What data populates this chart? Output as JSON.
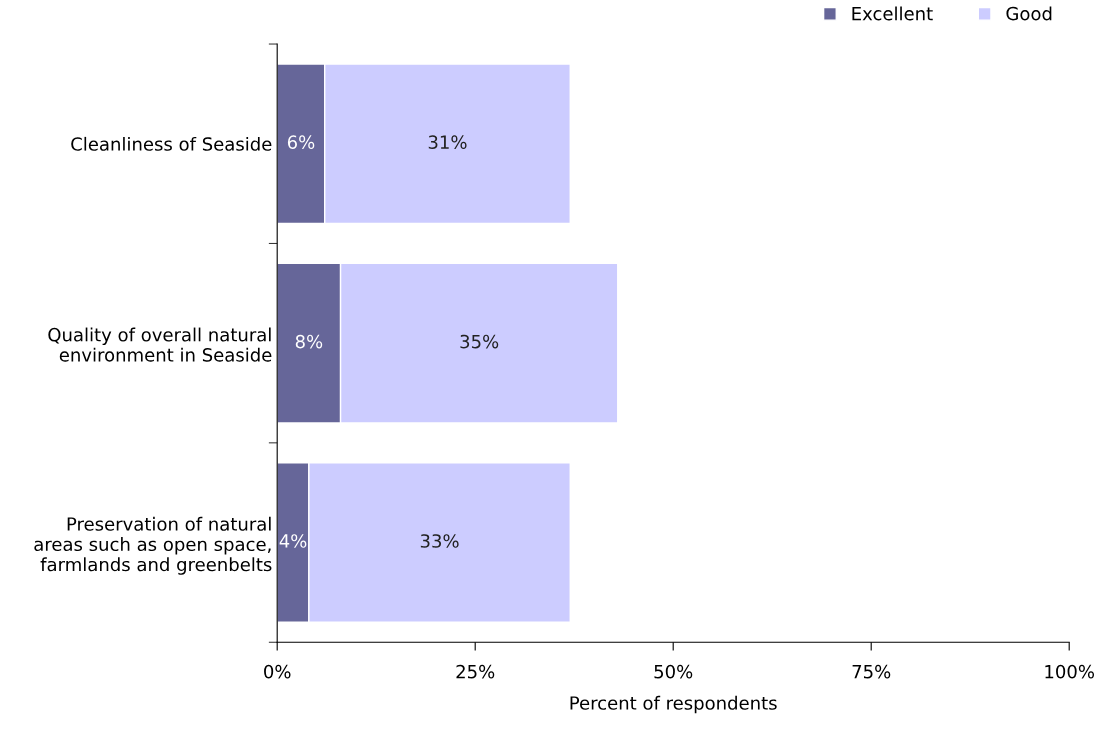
{
  "chart_data": {
    "type": "bar",
    "orientation": "horizontal",
    "stacked": true,
    "xlabel": "Percent of respondents",
    "categories": [
      "Cleanliness of Seaside",
      "Quality of overall natural environment in Seaside",
      "Preservation of natural areas such as open space, farmlands and greenbelts"
    ],
    "series": [
      {
        "name": "Excellent",
        "color": "#666699",
        "values": [
          6,
          8,
          4
        ],
        "value_labels": [
          "6%",
          "8%",
          "4%"
        ]
      },
      {
        "name": "Good",
        "color": "#ccccff",
        "values": [
          31,
          35,
          33
        ],
        "value_labels": [
          "31%",
          "35%",
          "33%"
        ]
      }
    ],
    "xlim": [
      0,
      100
    ],
    "xticks": [
      {
        "value": 0,
        "label": "0%"
      },
      {
        "value": 25,
        "label": "25%"
      },
      {
        "value": 50,
        "label": "50%"
      },
      {
        "value": 75,
        "label": "75%"
      },
      {
        "value": 100,
        "label": "100%"
      }
    ],
    "grid": false,
    "legend": "top right"
  }
}
